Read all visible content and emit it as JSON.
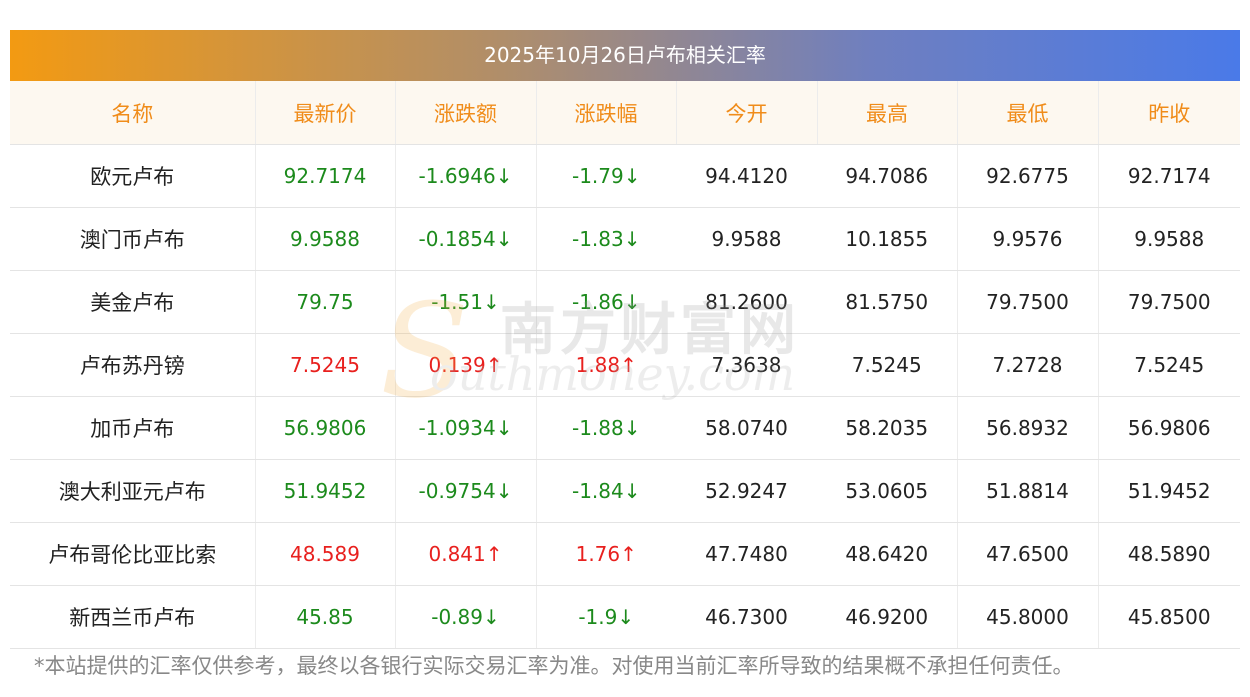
{
  "title": "2025年10月26日卢布相关汇率",
  "headers": [
    "名称",
    "最新价",
    "涨跌额",
    "涨跌幅",
    "今开",
    "最高",
    "最低",
    "昨收"
  ],
  "colors": {
    "header_text": "#f08c1a",
    "up": "#e8201e",
    "down": "#1c8a1c",
    "gradient_start": "#f39a12",
    "gradient_end": "#4a7ae8"
  },
  "rows": [
    {
      "name": "欧元卢布",
      "latest": "92.7174",
      "change": "-1.6946",
      "pct": "-1.79",
      "dir": "down",
      "open": "94.4120",
      "high": "94.7086",
      "low": "92.6775",
      "prev": "92.7174"
    },
    {
      "name": "澳门币卢布",
      "latest": "9.9588",
      "change": "-0.1854",
      "pct": "-1.83",
      "dir": "down",
      "open": "9.9588",
      "high": "10.1855",
      "low": "9.9576",
      "prev": "9.9588"
    },
    {
      "name": "美金卢布",
      "latest": "79.75",
      "change": "-1.51",
      "pct": "-1.86",
      "dir": "down",
      "open": "81.2600",
      "high": "81.5750",
      "low": "79.7500",
      "prev": "79.7500"
    },
    {
      "name": "卢布苏丹镑",
      "latest": "7.5245",
      "change": "0.139",
      "pct": "1.88",
      "dir": "up",
      "open": "7.3638",
      "high": "7.5245",
      "low": "7.2728",
      "prev": "7.5245"
    },
    {
      "name": "加币卢布",
      "latest": "56.9806",
      "change": "-1.0934",
      "pct": "-1.88",
      "dir": "down",
      "open": "58.0740",
      "high": "58.2035",
      "low": "56.8932",
      "prev": "56.9806"
    },
    {
      "name": "澳大利亚元卢布",
      "latest": "51.9452",
      "change": "-0.9754",
      "pct": "-1.84",
      "dir": "down",
      "open": "52.9247",
      "high": "53.0605",
      "low": "51.8814",
      "prev": "51.9452"
    },
    {
      "name": "卢布哥伦比亚比索",
      "latest": "48.589",
      "change": "0.841",
      "pct": "1.76",
      "dir": "up",
      "open": "47.7480",
      "high": "48.6420",
      "low": "47.6500",
      "prev": "48.5890"
    },
    {
      "name": "新西兰币卢布",
      "latest": "45.85",
      "change": "-0.89",
      "pct": "-1.9",
      "dir": "down",
      "open": "46.7300",
      "high": "46.9200",
      "low": "45.8000",
      "prev": "45.8500"
    }
  ],
  "watermark": {
    "cn": "南方财富网",
    "en": "outhmoney.com",
    "logo_letter": "S"
  },
  "footnote": "*本站提供的汇率仅供参考，最终以各银行实际交易汇率为准。对使用当前汇率所导致的结果概不承担任何责任。"
}
